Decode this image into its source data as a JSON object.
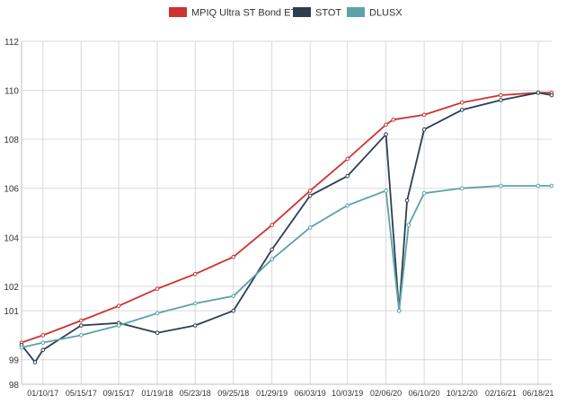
{
  "chart_data": {
    "type": "line",
    "title": "",
    "xlabel": "",
    "ylabel": "",
    "legend_position": "top-center",
    "grid": true,
    "ylim": [
      98,
      112
    ],
    "y_ticks": [
      98,
      99,
      101,
      102,
      104,
      106,
      108,
      110,
      112
    ],
    "y_tick_labels": [
      "98",
      "99",
      "101",
      "102",
      "104",
      "106",
      "108",
      "110",
      "112"
    ],
    "x_range": [
      "2016-11-01",
      "2021-08-01"
    ],
    "x_ticks": [
      "2017-01-10",
      "2017-05-15",
      "2017-09-15",
      "2018-01-19",
      "2018-05-23",
      "2018-09-25",
      "2019-01-29",
      "2019-06-03",
      "2019-10-03",
      "2020-02-06",
      "2020-06-10",
      "2020-10-12",
      "2021-02-16",
      "2021-06-18"
    ],
    "x_tick_labels": [
      "01/10/17",
      "05/15/17",
      "09/15/17",
      "01/19/18",
      "05/23/18",
      "09/25/18",
      "01/29/19",
      "06/03/19",
      "10/03/19",
      "02/06/20",
      "06/10/20",
      "10/12/20",
      "02/16/21",
      "06/18/21"
    ],
    "series": [
      {
        "name": "MPIQ Ultra ST Bond ETFs",
        "color": "#cc3333",
        "x": [
          "2016-11-01",
          "2017-01-10",
          "2017-05-15",
          "2017-09-15",
          "2018-01-19",
          "2018-05-23",
          "2018-09-25",
          "2019-01-29",
          "2019-06-03",
          "2019-10-03",
          "2020-02-06",
          "2020-03-01",
          "2020-06-10",
          "2020-10-12",
          "2021-02-16",
          "2021-06-18",
          "2021-08-01"
        ],
        "y": [
          99.7,
          100.0,
          100.6,
          101.2,
          101.9,
          102.5,
          103.2,
          104.5,
          105.9,
          107.2,
          108.6,
          108.8,
          109.0,
          109.5,
          109.8,
          109.9,
          109.9
        ]
      },
      {
        "name": "STOT",
        "color": "#2d3e50",
        "x": [
          "2016-11-01",
          "2016-12-15",
          "2017-01-10",
          "2017-05-15",
          "2017-09-15",
          "2018-01-19",
          "2018-05-23",
          "2018-09-25",
          "2019-01-29",
          "2019-06-03",
          "2019-10-03",
          "2020-02-06",
          "2020-03-20",
          "2020-04-15",
          "2020-06-10",
          "2020-10-12",
          "2021-02-16",
          "2021-06-18",
          "2021-08-01"
        ],
        "y": [
          99.6,
          98.9,
          99.4,
          100.4,
          100.5,
          100.1,
          100.4,
          101.0,
          103.5,
          105.7,
          106.5,
          108.2,
          101.0,
          105.5,
          108.4,
          109.2,
          109.6,
          109.9,
          109.8
        ]
      },
      {
        "name": "DLUSX",
        "color": "#5ba3a8",
        "x": [
          "2016-11-01",
          "2017-01-10",
          "2017-05-15",
          "2017-09-15",
          "2018-01-19",
          "2018-05-23",
          "2018-09-25",
          "2019-01-29",
          "2019-06-03",
          "2019-10-03",
          "2020-02-06",
          "2020-03-20",
          "2020-04-20",
          "2020-06-10",
          "2020-10-12",
          "2021-02-16",
          "2021-06-18",
          "2021-08-01"
        ],
        "y": [
          99.5,
          99.7,
          100.0,
          100.4,
          100.9,
          101.3,
          101.6,
          103.1,
          104.4,
          105.3,
          105.9,
          101.0,
          104.5,
          105.8,
          106.0,
          106.1,
          106.1,
          106.1
        ]
      }
    ]
  }
}
